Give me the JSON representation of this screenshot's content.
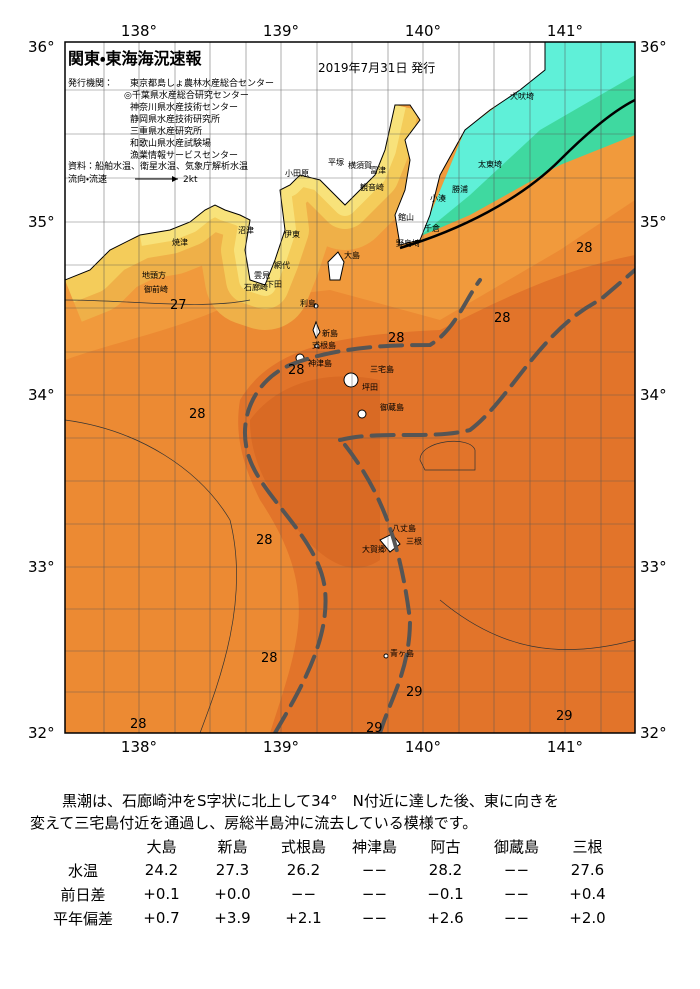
{
  "header": {
    "title": "関東・東海海況速報",
    "date": "2019年7月31日 発行",
    "issuer_label": "発行機関：",
    "issuers": [
      "東京都島しょ農林水産総合センター",
      "◎千葉県水産総合研究センター",
      "神奈川県水産技術センター",
      "静岡県水産技術研究所",
      "三重県水産研究所",
      "和歌山県水産試験場",
      "漁業情報サービスセンター"
    ],
    "source": "資料：船舶水温、衛星水温、気象庁解析水温",
    "flow_label": "流向・流速",
    "flow_scale": "2kt"
  },
  "axes": {
    "lon": [
      "138°",
      "139°",
      "140°",
      "141°"
    ],
    "lat": [
      "36°",
      "35°",
      "34°",
      "33°",
      "32°"
    ]
  },
  "places": [
    "犬吠埼",
    "太東埼",
    "勝浦",
    "小湊",
    "千倉",
    "館山",
    "野島埼",
    "富津",
    "観音崎",
    "横須賀",
    "平塚",
    "小田原",
    "大島",
    "伊東",
    "沼津",
    "焼津",
    "地頭方",
    "御前崎",
    "網代",
    "雲見",
    "下田",
    "石廊崎",
    "利島",
    "新島",
    "式根島",
    "神津島",
    "三宅島",
    "坪田",
    "御蔵島",
    "八丈島",
    "三根",
    "大賀郷",
    "青ヶ島"
  ],
  "temperatures": [
    "28",
    "27",
    "28",
    "28",
    "28",
    "28",
    "28",
    "28",
    "29",
    "29",
    "29",
    "28"
  ],
  "summary": [
    "黒潮は、石廊崎沖をS字状に北上して34°　N付近に達した後、東に向きを",
    "変えて三宅島付近を通過し、房総半島沖に流去している模様です。"
  ],
  "table": {
    "columns": [
      "大島",
      "新島",
      "式根島",
      "神津島",
      "阿古",
      "御蔵島",
      "三根"
    ],
    "rows": [
      {
        "label": "水温",
        "cells": [
          "24.2",
          "27.3",
          "26.2",
          "−−",
          "28.2",
          "−−",
          "27.6"
        ]
      },
      {
        "label": "前日差",
        "cells": [
          "+0.1",
          "+0.0",
          "−−",
          "−−",
          "−0.1",
          "−−",
          "+0.4"
        ]
      },
      {
        "label": "平年偏差",
        "cells": [
          "+0.7",
          "+3.9",
          "+2.1",
          "−−",
          "+2.6",
          "−−",
          "+2.0"
        ]
      }
    ]
  }
}
